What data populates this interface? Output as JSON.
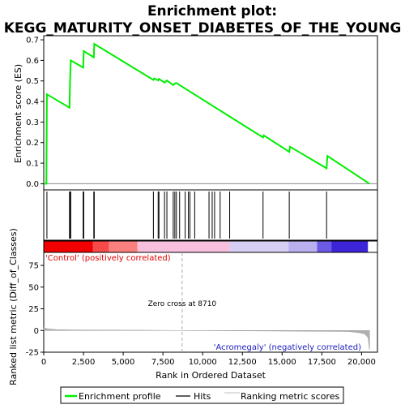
{
  "chart_data": {
    "type": "line",
    "title_line1": "Enrichment plot:",
    "title_line2": "KEGG_MATURITY_ONSET_DIABETES_OF_THE_YOUNG",
    "xlabel": "Rank in Ordered Dataset",
    "ylabel_top": "Enrichment score (ES)",
    "ylabel_bottom": "Ranked list metric (Diff_of_Classes)",
    "xlim": [
      0,
      21000
    ],
    "ylim_top": [
      -0.03,
      0.72
    ],
    "ylim_bottom": [
      -25,
      90
    ],
    "x_ticks": [
      0,
      2500,
      5000,
      7500,
      10000,
      12500,
      15000,
      17500,
      20000
    ],
    "x_tick_labels": [
      "0",
      "2,500",
      "5,000",
      "7,500",
      "10,000",
      "12,500",
      "15,000",
      "17,500",
      "20,000"
    ],
    "y_ticks_top": [
      0.0,
      0.1,
      0.2,
      0.3,
      0.4,
      0.5,
      0.6,
      0.7
    ],
    "y_tick_labels_top": [
      "0.0",
      "0.1",
      "0.2",
      "0.3",
      "0.4",
      "0.5",
      "0.6",
      "0.7"
    ],
    "y_ticks_bottom": [
      -25,
      0,
      25,
      50,
      75
    ],
    "y_tick_labels_bottom": [
      "-25",
      "0",
      "25",
      "50",
      "75"
    ],
    "es_curve": [
      [
        0,
        0
      ],
      [
        170,
        0
      ],
      [
        200,
        0.435
      ],
      [
        1620,
        0.37
      ],
      [
        1650,
        0.49
      ],
      [
        1700,
        0.6
      ],
      [
        2480,
        0.565
      ],
      [
        2520,
        0.645
      ],
      [
        3150,
        0.615
      ],
      [
        3180,
        0.68
      ],
      [
        6900,
        0.505
      ],
      [
        6950,
        0.512
      ],
      [
        7200,
        0.503
      ],
      [
        7250,
        0.51
      ],
      [
        7600,
        0.492
      ],
      [
        7750,
        0.502
      ],
      [
        8150,
        0.48
      ],
      [
        8250,
        0.488
      ],
      [
        8350,
        0.49
      ],
      [
        8550,
        0.48
      ],
      [
        13800,
        0.225
      ],
      [
        13850,
        0.235
      ],
      [
        15450,
        0.155
      ],
      [
        15500,
        0.18
      ],
      [
        17800,
        0.075
      ],
      [
        17850,
        0.135
      ],
      [
        20500,
        0.0
      ]
    ],
    "hits": [
      200,
      1620,
      1650,
      1700,
      2480,
      2520,
      3150,
      3180,
      6900,
      7200,
      7250,
      7600,
      7750,
      8150,
      8250,
      8350,
      8550,
      8900,
      9100,
      9200,
      9500,
      10400,
      10600,
      10750,
      11100,
      11700,
      13800,
      15450,
      17800
    ],
    "heatmap_colors": [
      "#f00000",
      "#f94a4a",
      "#fa8080",
      "#f8c0dc",
      "#d8d0f4",
      "#bab0f0",
      "#6a5ae6",
      "#3c24d8"
    ],
    "heatmap_bounds": [
      0,
      3100,
      4100,
      5900,
      11700,
      15400,
      17200,
      18100,
      20400
    ],
    "metric_curve": [
      [
        0,
        3.5
      ],
      [
        200,
        2
      ],
      [
        800,
        1
      ],
      [
        2000,
        0.6
      ],
      [
        4000,
        0.4
      ],
      [
        6000,
        0.3
      ],
      [
        8710,
        0
      ],
      [
        12000,
        -0.4
      ],
      [
        16000,
        -0.8
      ],
      [
        19200,
        -1.2
      ],
      [
        19800,
        -2.5
      ],
      [
        20200,
        -4
      ],
      [
        20400,
        -8
      ],
      [
        20450,
        -14
      ],
      [
        20480,
        -20
      ],
      [
        20500,
        -22
      ]
    ],
    "zero_cross": 8710,
    "zero_cross_label": "Zero cross at 8710",
    "pos_label": "'Control' (positively correlated)",
    "neg_label": "'Acromegaly' (negatively correlated)",
    "legend": [
      "Enrichment profile",
      "Hits",
      "Ranking metric scores"
    ],
    "colors": {
      "es": "#00ee00",
      "hits": "#000000",
      "metric": "#aaaaaa",
      "pos": "#dd0000",
      "neg": "#2020c0"
    }
  }
}
